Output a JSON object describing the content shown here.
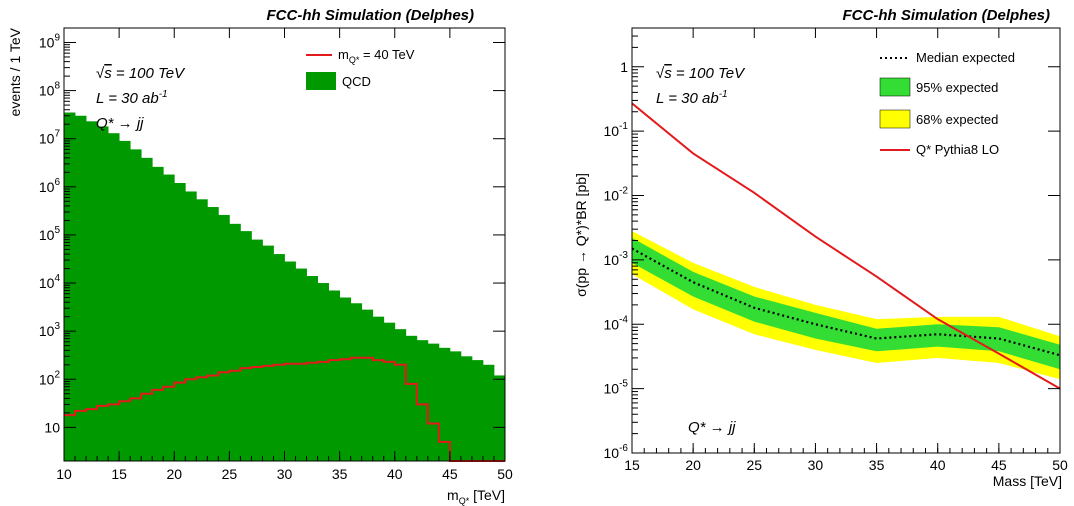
{
  "chart_data": [
    {
      "type": "bar",
      "title": "FCC-hh Simulation (Delphes)",
      "xlabel": "m_{Q*} [TeV]",
      "ylabel": "events / 1 TeV",
      "xlim": [
        10,
        50
      ],
      "ylim": [
        2,
        2000000000
      ],
      "log_y": true,
      "annotations": [
        "√s = 100 TeV",
        "L = 30 ab-1",
        "Q* → jj"
      ],
      "legend": {
        "position": "top-right",
        "entries": [
          "m_{Q*} = 40 TeV",
          "QCD"
        ]
      },
      "colors": {
        "qcd": "#009900",
        "signal": "#e31a1c"
      },
      "x_ticks": [
        "10",
        "15",
        "20",
        "25",
        "30",
        "35",
        "40",
        "45",
        "50"
      ],
      "y_ticks": [
        {
          "v": 10,
          "l": "10"
        },
        {
          "v": 100,
          "l": "10^2"
        },
        {
          "v": 1000,
          "l": "10^3"
        },
        {
          "v": 10000,
          "l": "10^4"
        },
        {
          "v": 100000,
          "l": "10^5"
        },
        {
          "v": 1000000,
          "l": "10^6"
        },
        {
          "v": 10000000,
          "l": "10^7"
        },
        {
          "v": 100000000,
          "l": "10^8"
        },
        {
          "v": 1000000000,
          "l": "10^9"
        }
      ],
      "bin_edges": [
        10,
        11,
        12,
        13,
        14,
        15,
        16,
        17,
        18,
        19,
        20,
        21,
        22,
        23,
        24,
        25,
        26,
        27,
        28,
        29,
        30,
        31,
        32,
        33,
        34,
        35,
        36,
        37,
        38,
        39,
        40,
        41,
        42,
        43,
        44,
        45,
        46,
        47,
        48,
        49,
        50
      ],
      "series": [
        {
          "name": "QCD",
          "style": "filled-hist",
          "values": [
            35000000,
            30000000,
            23000000,
            18000000,
            13000000,
            9000000,
            6000000,
            4000000,
            2600000,
            1800000,
            1200000,
            800000,
            550000,
            380000,
            260000,
            170000,
            120000,
            80000,
            60000,
            40000,
            28000,
            20000,
            14000,
            10000,
            7000,
            5000,
            3800,
            2800,
            2000,
            1500,
            1100,
            800,
            650,
            550,
            450,
            380,
            300,
            250,
            200,
            120
          ]
        },
        {
          "name": "m_{Q*} = 40 TeV",
          "style": "line-hist",
          "values": [
            18,
            22,
            24,
            28,
            30,
            35,
            40,
            50,
            60,
            70,
            85,
            100,
            110,
            120,
            140,
            150,
            170,
            180,
            190,
            200,
            210,
            210,
            220,
            230,
            250,
            260,
            280,
            280,
            250,
            230,
            200,
            80,
            30,
            12,
            5,
            2,
            1,
            1,
            1,
            1
          ]
        }
      ]
    },
    {
      "type": "line",
      "title": "FCC-hh Simulation (Delphes)",
      "xlabel": "Mass [TeV]",
      "ylabel": "σ(pp → Q*)*BR [pb]",
      "xlim": [
        15,
        50
      ],
      "ylim": [
        1e-06,
        4
      ],
      "log_y": true,
      "annotations": [
        "√s = 100 TeV",
        "L = 30 ab-1",
        "Q* → jj"
      ],
      "legend": {
        "position": "top-right",
        "entries": [
          "Median expected",
          "95% expected",
          "68% expected",
          "Q* Pythia8 LO"
        ]
      },
      "colors": {
        "median": "#000000",
        "band95": "#ffff00",
        "band68": "#33dd33",
        "theory": "#e31a1c"
      },
      "x_ticks": [
        "15",
        "20",
        "25",
        "30",
        "35",
        "40",
        "45",
        "50"
      ],
      "y_ticks": [
        {
          "v": 1e-06,
          "l": "10^-6"
        },
        {
          "v": 1e-05,
          "l": "10^-5"
        },
        {
          "v": 0.0001,
          "l": "10^-4"
        },
        {
          "v": 0.001,
          "l": "10^-3"
        },
        {
          "v": 0.01,
          "l": "10^-2"
        },
        {
          "v": 0.1,
          "l": "10^-1"
        },
        {
          "v": 1,
          "l": "1"
        }
      ],
      "x": [
        15,
        20,
        25,
        30,
        35,
        40,
        45,
        50
      ],
      "series": [
        {
          "name": "Median expected",
          "values": [
            0.0015,
            0.00045,
            0.00018,
            0.0001,
            6e-05,
            7e-05,
            6e-05,
            3.3e-05
          ]
        },
        {
          "name": "95% expected",
          "low": [
            0.0006,
            0.00017,
            7e-05,
            4e-05,
            2.5e-05,
            3e-05,
            2.5e-05,
            1.4e-05
          ],
          "high": [
            0.0028,
            0.0009,
            0.00038,
            0.0002,
            0.00012,
            0.00013,
            0.00013,
            6.5e-05
          ]
        },
        {
          "name": "68% expected",
          "low": [
            0.0009,
            0.00027,
            0.00011,
            6e-05,
            3.8e-05,
            4.5e-05,
            3.8e-05,
            2e-05
          ],
          "high": [
            0.0022,
            0.00065,
            0.00027,
            0.00015,
            8.5e-05,
            0.0001,
            9e-05,
            4.8e-05
          ]
        },
        {
          "name": "Q* Pythia8 LO",
          "values": [
            0.27,
            0.045,
            0.011,
            0.0023,
            0.00055,
            0.00012,
            3.5e-05,
            1e-05
          ]
        }
      ]
    }
  ]
}
